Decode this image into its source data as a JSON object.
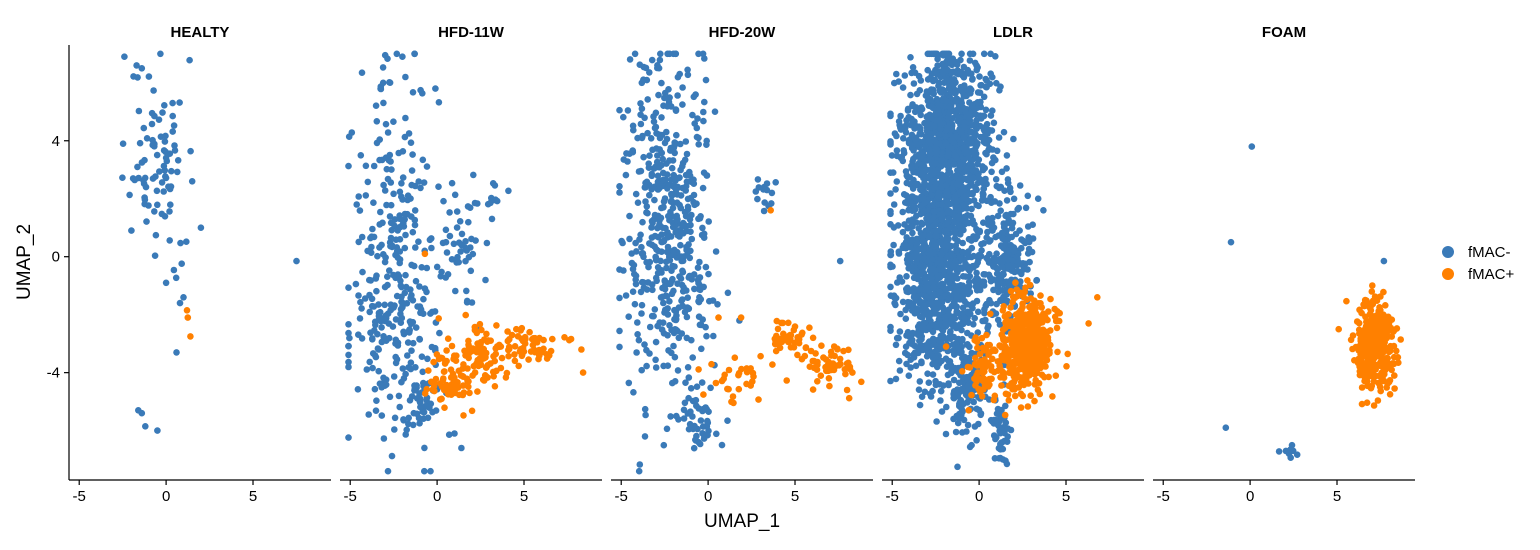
{
  "chart_data": {
    "type": "scatter",
    "layout": "faceted",
    "xlabel": "UMAP_1",
    "ylabel": "UMAP_2",
    "xlim": [
      -5.3,
      9.2
    ],
    "ylim": [
      -7.6,
      7.2
    ],
    "x_ticks": [
      -5,
      0,
      5
    ],
    "y_ticks": [
      -4,
      0,
      4
    ],
    "x_tick_labels": [
      "-5",
      "0",
      "5"
    ],
    "y_tick_labels": [
      "-4",
      "0",
      "4"
    ],
    "grid": false,
    "legend": {
      "position": "right",
      "entries": [
        {
          "label": "fMAC-",
          "color": "#3a7ab8"
        },
        {
          "label": "fMAC+",
          "color": "#ff8000"
        }
      ]
    },
    "panels": [
      {
        "title": "HEALTY",
        "clusters": [
          {
            "series": "fMAC-",
            "n": 70,
            "cx": -0.5,
            "cy": 3.8,
            "sx": 0.8,
            "sy": 1.5,
            "seed": 11
          },
          {
            "series": "fMAC-",
            "n": 14,
            "cx": 0.4,
            "cy": 0.8,
            "sx": 0.9,
            "sy": 1.0,
            "seed": 12
          }
        ],
        "points": [
          {
            "series": "fMAC-",
            "x": -2.4,
            "y": 6.9
          },
          {
            "series": "fMAC-",
            "x": -1.7,
            "y": 6.6
          },
          {
            "series": "fMAC-",
            "x": -1.4,
            "y": 6.5
          },
          {
            "series": "fMAC-",
            "x": -1.9,
            "y": 2.7
          },
          {
            "series": "fMAC-",
            "x": -2.0,
            "y": 0.9
          },
          {
            "series": "fMAC-",
            "x": 2.0,
            "y": 1.0
          },
          {
            "series": "fMAC-",
            "x": 1.5,
            "y": 2.6
          },
          {
            "series": "fMAC-",
            "x": 7.5,
            "y": -0.15
          },
          {
            "series": "fMAC-",
            "x": 0.0,
            "y": -0.9
          },
          {
            "series": "fMAC-",
            "x": 0.8,
            "y": -1.6
          },
          {
            "series": "fMAC-",
            "x": 1.0,
            "y": -1.4
          },
          {
            "series": "fMAC-",
            "x": 0.6,
            "y": -3.3
          },
          {
            "series": "fMAC-",
            "x": -1.6,
            "y": -5.3
          },
          {
            "series": "fMAC-",
            "x": -1.4,
            "y": -5.4
          },
          {
            "series": "fMAC-",
            "x": -1.2,
            "y": -5.85
          },
          {
            "series": "fMAC-",
            "x": -0.5,
            "y": -6.0
          },
          {
            "series": "fMAC+",
            "x": 1.2,
            "y": -1.85
          },
          {
            "series": "fMAC+",
            "x": 1.25,
            "y": -2.1
          },
          {
            "series": "fMAC+",
            "x": 1.4,
            "y": -2.75
          }
        ]
      },
      {
        "title": "HFD-11W",
        "clusters": [
          {
            "series": "fMAC-",
            "n": 300,
            "cx": -2.3,
            "cy": -1.4,
            "sx": 1.35,
            "sy": 2.6,
            "seed": 21
          },
          {
            "series": "fMAC-",
            "n": 45,
            "cx": 1.3,
            "cy": 0.3,
            "sx": 0.7,
            "sy": 1.0,
            "seed": 22
          },
          {
            "series": "fMAC-",
            "n": 35,
            "cx": -2.2,
            "cy": 4.6,
            "sx": 1.0,
            "sy": 1.2,
            "seed": 23
          },
          {
            "series": "fMAC-",
            "n": 35,
            "cx": -1.0,
            "cy": -5.2,
            "sx": 0.5,
            "sy": 0.6,
            "seed": 24
          },
          {
            "series": "fMAC-",
            "n": 10,
            "cx": 3.5,
            "cy": 1.9,
            "sx": 0.35,
            "sy": 0.3,
            "seed": 25
          },
          {
            "series": "fMAC+",
            "n": 120,
            "cx": 2.0,
            "cy": -3.5,
            "sx": 1.1,
            "sy": 0.6,
            "seed": 26
          },
          {
            "series": "fMAC+",
            "n": 55,
            "cx": 5.0,
            "cy": -3.0,
            "sx": 1.0,
            "sy": 0.35,
            "seed": 27
          },
          {
            "series": "fMAC+",
            "n": 28,
            "cx": 0.8,
            "cy": -4.5,
            "sx": 0.6,
            "sy": 0.2,
            "seed": 28
          }
        ],
        "points": [
          {
            "series": "fMAC-",
            "x": -2.0,
            "y": 6.9
          },
          {
            "series": "fMAC-",
            "x": -3.1,
            "y": 6.0
          },
          {
            "series": "fMAC-",
            "x": -0.1,
            "y": 5.8
          },
          {
            "series": "fMAC-",
            "x": -4.0,
            "y": 0.2
          },
          {
            "series": "fMAC-",
            "x": 1.0,
            "y": -6.1
          },
          {
            "series": "fMAC-",
            "x": 1.4,
            "y": -6.6
          },
          {
            "series": "fMAC+",
            "x": 8.3,
            "y": -3.2
          },
          {
            "series": "fMAC+",
            "x": 8.4,
            "y": -4.0
          },
          {
            "series": "fMAC+",
            "x": -0.7,
            "y": 0.1
          }
        ]
      },
      {
        "title": "HFD-20W",
        "clusters": [
          {
            "series": "fMAC-",
            "n": 520,
            "cx": -2.3,
            "cy": 1.0,
            "sx": 1.25,
            "sy": 2.9,
            "seed": 31
          },
          {
            "series": "fMAC-",
            "n": 40,
            "cx": -0.5,
            "cy": -5.5,
            "sx": 0.6,
            "sy": 0.5,
            "seed": 32
          },
          {
            "series": "fMAC-",
            "n": 16,
            "cx": 3.3,
            "cy": 2.1,
            "sx": 0.3,
            "sy": 0.3,
            "seed": 33
          },
          {
            "series": "fMAC+",
            "n": 40,
            "cx": 4.6,
            "cy": -2.8,
            "sx": 0.6,
            "sy": 0.3,
            "seed": 34
          },
          {
            "series": "fMAC+",
            "n": 55,
            "cx": 7.0,
            "cy": -3.7,
            "sx": 0.9,
            "sy": 0.4,
            "seed": 35
          },
          {
            "series": "fMAC+",
            "n": 30,
            "cx": 1.8,
            "cy": -4.2,
            "sx": 1.0,
            "sy": 0.4,
            "seed": 36
          }
        ],
        "points": [
          {
            "series": "fMAC-",
            "x": 7.6,
            "y": -0.15
          },
          {
            "series": "fMAC-",
            "x": 0.8,
            "y": -6.5
          },
          {
            "series": "fMAC-",
            "x": 1.8,
            "y": -2.2
          },
          {
            "series": "fMAC+",
            "x": 3.6,
            "y": 1.6
          },
          {
            "series": "fMAC+",
            "x": 0.6,
            "y": -2.1
          },
          {
            "series": "fMAC+",
            "x": 1.9,
            "y": -2.1
          },
          {
            "series": "fMAC+",
            "x": 8.3,
            "y": -4.0
          },
          {
            "series": "fMAC+",
            "x": 8.0,
            "y": -4.6
          }
        ]
      },
      {
        "title": "LDLR",
        "clusters": [
          {
            "series": "fMAC-",
            "n": 1000,
            "cx": -1.8,
            "cy": 3.6,
            "sx": 1.3,
            "sy": 1.7,
            "seed": 41
          },
          {
            "series": "fMAC-",
            "n": 900,
            "cx": -2.4,
            "cy": -0.7,
            "sx": 1.25,
            "sy": 2.0,
            "seed": 42
          },
          {
            "series": "fMAC-",
            "n": 220,
            "cx": 1.6,
            "cy": -0.2,
            "sx": 0.8,
            "sy": 1.1,
            "seed": 43
          },
          {
            "series": "fMAC-",
            "n": 130,
            "cx": -0.7,
            "cy": -4.3,
            "sx": 0.6,
            "sy": 1.0,
            "seed": 44
          },
          {
            "series": "fMAC-",
            "n": 50,
            "cx": 1.2,
            "cy": -6.0,
            "sx": 0.25,
            "sy": 0.6,
            "seed": 45
          },
          {
            "series": "fMAC-",
            "n": 60,
            "cx": -1.5,
            "cy": 6.0,
            "sx": 0.9,
            "sy": 0.5,
            "seed": 46
          },
          {
            "series": "fMAC+",
            "n": 520,
            "cx": 2.7,
            "cy": -3.1,
            "sx": 0.75,
            "sy": 0.75,
            "seed": 47
          },
          {
            "series": "fMAC+",
            "n": 70,
            "cx": 0.4,
            "cy": -3.8,
            "sx": 0.6,
            "sy": 0.5,
            "seed": 48
          }
        ],
        "points": [
          {
            "series": "fMAC-",
            "x": 2.8,
            "y": 2.1
          },
          {
            "series": "fMAC-",
            "x": 3.4,
            "y": 2.0
          },
          {
            "series": "fMAC-",
            "x": 3.7,
            "y": 1.6
          },
          {
            "series": "fMAC+",
            "x": 6.8,
            "y": -1.4
          },
          {
            "series": "fMAC+",
            "x": 6.3,
            "y": -2.3
          },
          {
            "series": "fMAC+",
            "x": -1.9,
            "y": -3.1
          },
          {
            "series": "fMAC+",
            "x": -0.6,
            "y": -5.3
          },
          {
            "series": "fMAC+",
            "x": 0.9,
            "y": -4.8
          }
        ]
      },
      {
        "title": "FOAM",
        "clusters": [
          {
            "series": "fMAC+",
            "n": 340,
            "cx": 7.2,
            "cy": -3.1,
            "sx": 0.55,
            "sy": 0.8,
            "seed": 51
          },
          {
            "series": "fMAC-",
            "n": 8,
            "cx": 2.3,
            "cy": -6.7,
            "sx": 0.25,
            "sy": 0.12,
            "seed": 52
          }
        ],
        "points": [
          {
            "series": "fMAC-",
            "x": 0.1,
            "y": 3.8
          },
          {
            "series": "fMAC-",
            "x": -1.1,
            "y": 0.5
          },
          {
            "series": "fMAC-",
            "x": -1.4,
            "y": -5.9
          },
          {
            "series": "fMAC-",
            "x": 7.7,
            "y": -0.15
          },
          {
            "series": "fMAC+",
            "x": 7.0,
            "y": -1.2
          },
          {
            "series": "fMAC+",
            "x": 5.1,
            "y": -2.5
          }
        ]
      }
    ]
  }
}
